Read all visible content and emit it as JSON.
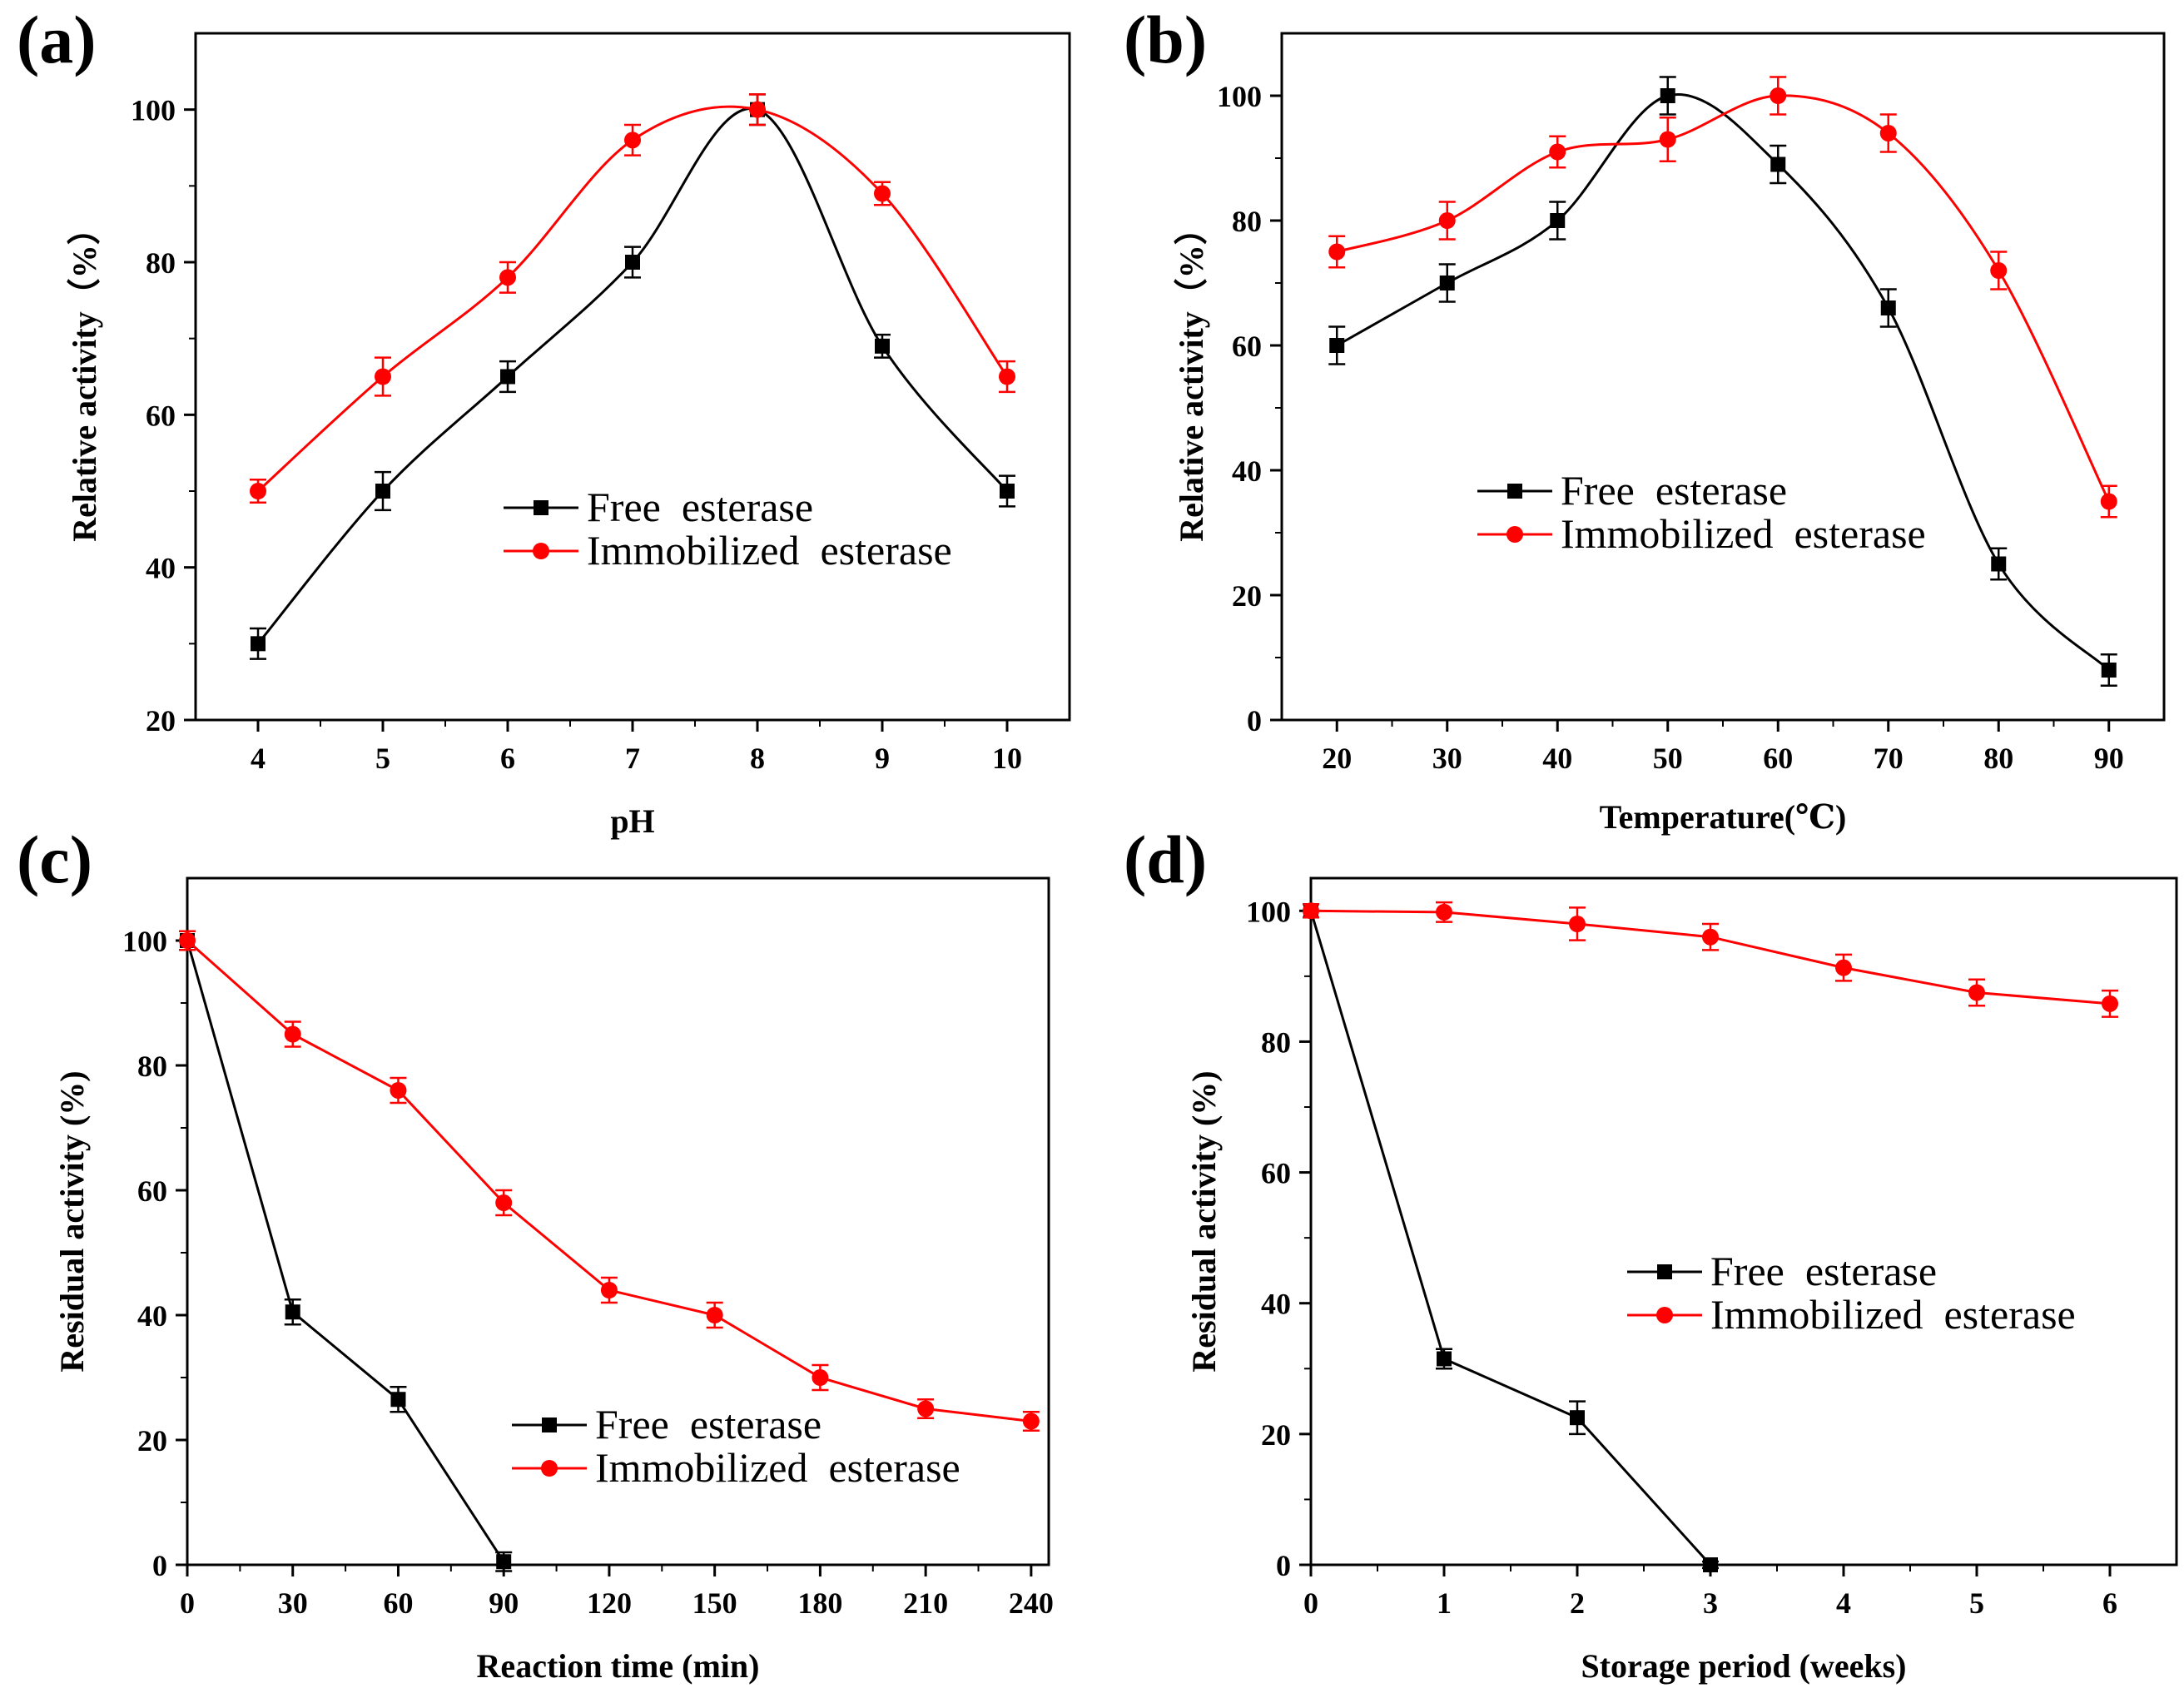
{
  "chart_data": [
    {
      "panel": "(a)",
      "type": "line",
      "xlabel": "pH",
      "ylabel": "Relative activity（%）",
      "xlim": [
        3.5,
        10.5
      ],
      "ylim": [
        20,
        110
      ],
      "xticks": [
        4,
        5,
        6,
        7,
        8,
        9,
        10
      ],
      "yticks": [
        20,
        40,
        60,
        80,
        100
      ],
      "legend_position": "center-right",
      "series": [
        {
          "name": "Free  esterase",
          "color": "#000000",
          "marker": "square",
          "x": [
            4,
            5,
            6,
            7,
            8,
            9,
            10
          ],
          "y": [
            30,
            50,
            65,
            80,
            100,
            69,
            50
          ],
          "err": [
            2,
            2.5,
            2,
            2,
            2,
            1.5,
            2
          ]
        },
        {
          "name": "Immobilized  esterase",
          "color": "#ff0000",
          "marker": "circle",
          "x": [
            4,
            5,
            6,
            7,
            8,
            9,
            10
          ],
          "y": [
            50,
            65,
            78,
            96,
            100,
            89,
            65
          ],
          "err": [
            1.5,
            2.5,
            2,
            2,
            2,
            1.5,
            2
          ]
        }
      ]
    },
    {
      "panel": "(b)",
      "type": "line",
      "xlabel": "Temperature(℃)",
      "ylabel": "Relative activity（%）",
      "xlim": [
        15,
        95
      ],
      "ylim": [
        0,
        110
      ],
      "xticks": [
        20,
        30,
        40,
        50,
        60,
        70,
        80,
        90
      ],
      "yticks": [
        0,
        20,
        40,
        60,
        80,
        100
      ],
      "legend_position": "center-right",
      "series": [
        {
          "name": "Free  esterase",
          "color": "#000000",
          "marker": "square",
          "x": [
            20,
            30,
            40,
            50,
            60,
            70,
            80,
            90
          ],
          "y": [
            60,
            70,
            80,
            100,
            89,
            66,
            25,
            8
          ],
          "err": [
            3,
            3,
            3,
            3,
            3,
            3,
            2.5,
            2.5
          ]
        },
        {
          "name": "Immobilized  esterase",
          "color": "#ff0000",
          "marker": "circle",
          "x": [
            20,
            30,
            40,
            50,
            60,
            70,
            80,
            90
          ],
          "y": [
            75,
            80,
            91,
            93,
            100,
            94,
            72,
            35
          ],
          "err": [
            2.5,
            3,
            2.5,
            3.5,
            3,
            3,
            3,
            2.5
          ]
        }
      ]
    },
    {
      "panel": "(c)",
      "type": "line",
      "xlabel": "Reaction time (min)",
      "ylabel": "Residual activity (%)",
      "xlim": [
        0,
        245
      ],
      "ylim": [
        0,
        110
      ],
      "xticks": [
        0,
        30,
        60,
        90,
        120,
        150,
        180,
        210,
        240
      ],
      "yticks": [
        0,
        20,
        40,
        60,
        80,
        100
      ],
      "legend_position": "bottom-right",
      "series": [
        {
          "name": "Free  esterase",
          "color": "#000000",
          "marker": "square",
          "x": [
            0,
            30,
            60,
            90
          ],
          "y": [
            100,
            40.5,
            26.5,
            0.5
          ],
          "err": [
            1.5,
            2,
            2,
            1.5
          ]
        },
        {
          "name": "Immobilized  esterase",
          "color": "#ff0000",
          "marker": "circle",
          "x": [
            0,
            30,
            60,
            90,
            120,
            150,
            180,
            210,
            240
          ],
          "y": [
            100,
            85,
            76,
            58,
            44,
            40,
            30,
            25,
            23
          ],
          "err": [
            1.5,
            2,
            2,
            2,
            2,
            2,
            2,
            1.5,
            1.5
          ]
        }
      ]
    },
    {
      "panel": "(d)",
      "type": "line",
      "xlabel": "Storage period (weeks)",
      "ylabel": "Residual activity (%)",
      "xlim": [
        0,
        6.5
      ],
      "ylim": [
        0,
        105
      ],
      "xticks": [
        0,
        1,
        2,
        3,
        4,
        5,
        6
      ],
      "yticks": [
        0,
        20,
        40,
        60,
        80,
        100
      ],
      "legend_position": "center-right",
      "series": [
        {
          "name": "Free  esterase",
          "color": "#000000",
          "marker": "square",
          "x": [
            0,
            1,
            2,
            3
          ],
          "y": [
            100,
            31.5,
            22.5,
            0
          ],
          "err": [
            1,
            1.5,
            2.5,
            0.5
          ]
        },
        {
          "name": "Immobilized  esterase",
          "color": "#ff0000",
          "marker": "circle",
          "x": [
            0,
            1,
            2,
            3,
            4,
            5,
            6
          ],
          "y": [
            100,
            99.8,
            98,
            96,
            91.3,
            87.5,
            85.8
          ],
          "err": [
            1,
            1.5,
            2.5,
            2,
            2,
            2,
            2
          ]
        }
      ]
    }
  ]
}
